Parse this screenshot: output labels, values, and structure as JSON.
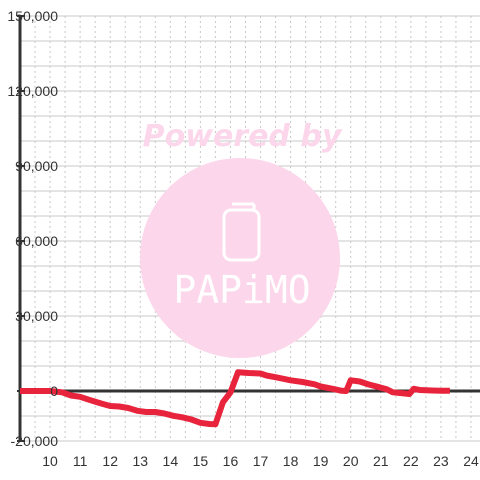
{
  "colors": {
    "series": "#e8243c",
    "axis": "#333333",
    "grid_solid": "#c8c8c8",
    "grid_dotted": "#c8c8c8",
    "watermark": "#fcd6ea",
    "watermark_text": "#ffffff"
  },
  "watermark": {
    "caption": "Powered by",
    "logo_text": "PAPiMO",
    "icon": "smartphone-icon"
  },
  "chart_data": {
    "type": "line",
    "title": "",
    "xlabel": "",
    "ylabel": "",
    "xlim": [
      9,
      24.3
    ],
    "ylim": [
      -20000,
      150000
    ],
    "grid": true,
    "x_ticks": [
      {
        "value": 10,
        "label": "10"
      },
      {
        "value": 11,
        "label": "11"
      },
      {
        "value": 12,
        "label": "12"
      },
      {
        "value": 13,
        "label": "13"
      },
      {
        "value": 14,
        "label": "14"
      },
      {
        "value": 15,
        "label": "15"
      },
      {
        "value": 16,
        "label": "16"
      },
      {
        "value": 17,
        "label": "17"
      },
      {
        "value": 18,
        "label": "18"
      },
      {
        "value": 19,
        "label": "19"
      },
      {
        "value": 20,
        "label": "20"
      },
      {
        "value": 21,
        "label": "21"
      },
      {
        "value": 22,
        "label": "22"
      },
      {
        "value": 23,
        "label": "23"
      },
      {
        "value": 24,
        "label": "24"
      }
    ],
    "y_ticks": [
      {
        "value": -20000,
        "label": "-20,000"
      },
      {
        "value": 0,
        "label": "0"
      },
      {
        "value": 30000,
        "label": "30,000"
      },
      {
        "value": 60000,
        "label": "60,000"
      },
      {
        "value": 90000,
        "label": "90,000"
      },
      {
        "value": 120000,
        "label": "120,000"
      },
      {
        "value": 150000,
        "label": "150,000"
      }
    ],
    "series": [
      {
        "points": [
          [
            9.0,
            0
          ],
          [
            9.6,
            0
          ],
          [
            10.0,
            0
          ],
          [
            10.4,
            -500
          ],
          [
            10.7,
            -1800
          ],
          [
            11.0,
            -2300
          ],
          [
            11.3,
            -3500
          ],
          [
            11.7,
            -5000
          ],
          [
            12.0,
            -6000
          ],
          [
            12.3,
            -6200
          ],
          [
            12.6,
            -6800
          ],
          [
            12.9,
            -7900
          ],
          [
            13.2,
            -8400
          ],
          [
            13.5,
            -8400
          ],
          [
            13.8,
            -9000
          ],
          [
            14.1,
            -9900
          ],
          [
            14.4,
            -10500
          ],
          [
            14.7,
            -11400
          ],
          [
            15.0,
            -12700
          ],
          [
            15.3,
            -13200
          ],
          [
            15.5,
            -13300
          ],
          [
            15.75,
            -4500
          ],
          [
            16.0,
            -500
          ],
          [
            16.25,
            7500
          ],
          [
            16.6,
            7200
          ],
          [
            17.0,
            7000
          ],
          [
            17.2,
            6200
          ],
          [
            17.6,
            5300
          ],
          [
            18.0,
            4300
          ],
          [
            18.4,
            3600
          ],
          [
            18.8,
            2700
          ],
          [
            19.0,
            1800
          ],
          [
            19.4,
            900
          ],
          [
            19.7,
            100
          ],
          [
            19.85,
            0
          ],
          [
            20.0,
            4300
          ],
          [
            20.3,
            3800
          ],
          [
            20.6,
            2600
          ],
          [
            20.9,
            1700
          ],
          [
            21.2,
            700
          ],
          [
            21.4,
            -500
          ],
          [
            21.8,
            -1000
          ],
          [
            21.95,
            -1200
          ],
          [
            22.1,
            900
          ],
          [
            22.3,
            400
          ],
          [
            22.7,
            200
          ],
          [
            23.0,
            100
          ],
          [
            23.3,
            100
          ]
        ]
      }
    ]
  }
}
